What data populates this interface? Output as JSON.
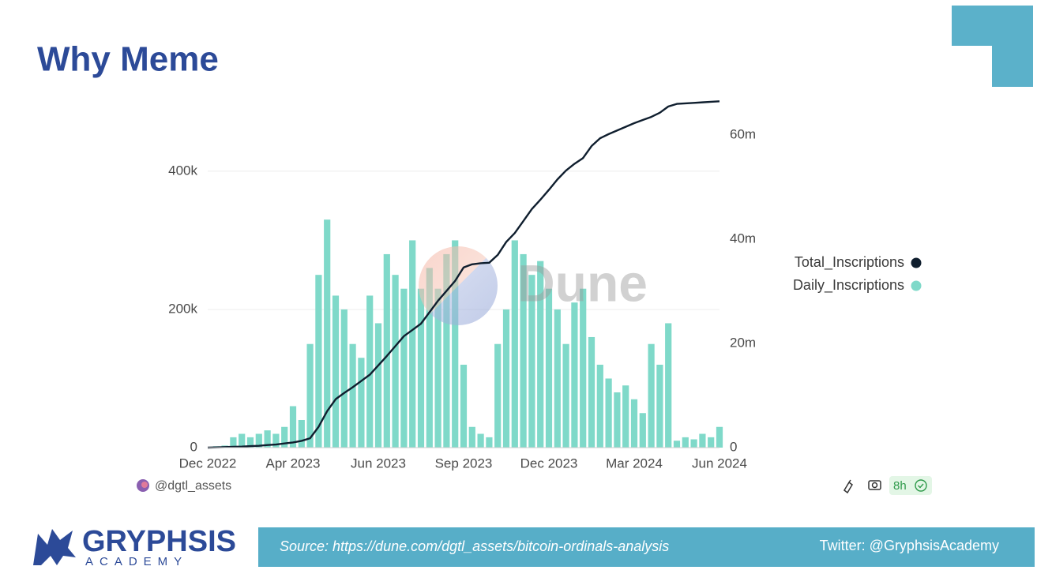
{
  "header": {
    "title": "Why Meme"
  },
  "chart_data": {
    "type": "combo",
    "watermark": "Dune",
    "categories": [
      "Dec 2022",
      null,
      null,
      null,
      null,
      null,
      null,
      null,
      null,
      null,
      "Apr 2023",
      null,
      null,
      null,
      null,
      null,
      null,
      null,
      null,
      null,
      "Jun 2023",
      null,
      null,
      null,
      null,
      null,
      null,
      null,
      null,
      null,
      "Sep 2023",
      null,
      null,
      null,
      null,
      null,
      null,
      null,
      null,
      null,
      "Dec 2023",
      null,
      null,
      null,
      null,
      null,
      null,
      null,
      null,
      null,
      "Mar 2024",
      null,
      null,
      null,
      null,
      null,
      null,
      null,
      null,
      null,
      "Jun 2024"
    ],
    "series": [
      {
        "name": "Total_Inscriptions",
        "type": "line",
        "axis": "y2",
        "color": "#0f1e2e",
        "values": [
          0,
          50000,
          100000,
          150000,
          200000,
          300000,
          350000,
          500000,
          600000,
          800000,
          1000000,
          1300000,
          1800000,
          4000000,
          7000000,
          9300000,
          10500000,
          11600000,
          12800000,
          14000000,
          15800000,
          17600000,
          19500000,
          21400000,
          22600000,
          23800000,
          26000000,
          28200000,
          30100000,
          32000000,
          34600000,
          35200000,
          35400000,
          35500000,
          37000000,
          39500000,
          41200000,
          43500000,
          45800000,
          47600000,
          49500000,
          51500000,
          53200000,
          54500000,
          55600000,
          57900000,
          59400000,
          60200000,
          60900000,
          61600000,
          62300000,
          62900000,
          63500000,
          64300000,
          65500000,
          66000000,
          66100000,
          66200000,
          66300000,
          66400000,
          66500000
        ]
      },
      {
        "name": "Daily_Inscriptions",
        "type": "bar",
        "color": "#7fd9c9",
        "values": [
          0,
          2000,
          3000,
          15000,
          20000,
          15000,
          20000,
          25000,
          20000,
          30000,
          60000,
          40000,
          150000,
          250000,
          330000,
          220000,
          200000,
          150000,
          130000,
          220000,
          180000,
          280000,
          250000,
          230000,
          300000,
          230000,
          260000,
          230000,
          280000,
          300000,
          120000,
          30000,
          20000,
          15000,
          150000,
          200000,
          300000,
          280000,
          250000,
          270000,
          230000,
          200000,
          150000,
          210000,
          230000,
          160000,
          120000,
          100000,
          80000,
          90000,
          70000,
          50000,
          150000,
          120000,
          180000,
          10000,
          15000,
          12000,
          20000,
          15000,
          30000
        ]
      }
    ],
    "ylim": [
      0,
      505000
    ],
    "yticks": [
      0,
      {
        "value": 200000,
        "label": "200k"
      },
      {
        "value": 400000,
        "label": "400k"
      }
    ],
    "y2lim": [
      0,
      67000000
    ],
    "y2ticks": [
      0,
      {
        "value": 20000000,
        "label": "20m"
      },
      {
        "value": 40000000,
        "label": "40m"
      },
      {
        "value": 60000000,
        "label": "60m"
      }
    ],
    "grid": true,
    "legend": "right",
    "author": "@dgtl_assets",
    "freshness": "8h"
  },
  "footer": {
    "logo_name": "GRYPHSIS",
    "logo_sub": "ACADEMY",
    "source": "Source: https://dune.com/dgtl_assets/bitcoin-ordinals-analysis",
    "twitter": "Twitter: @GryphsisAcademy"
  }
}
